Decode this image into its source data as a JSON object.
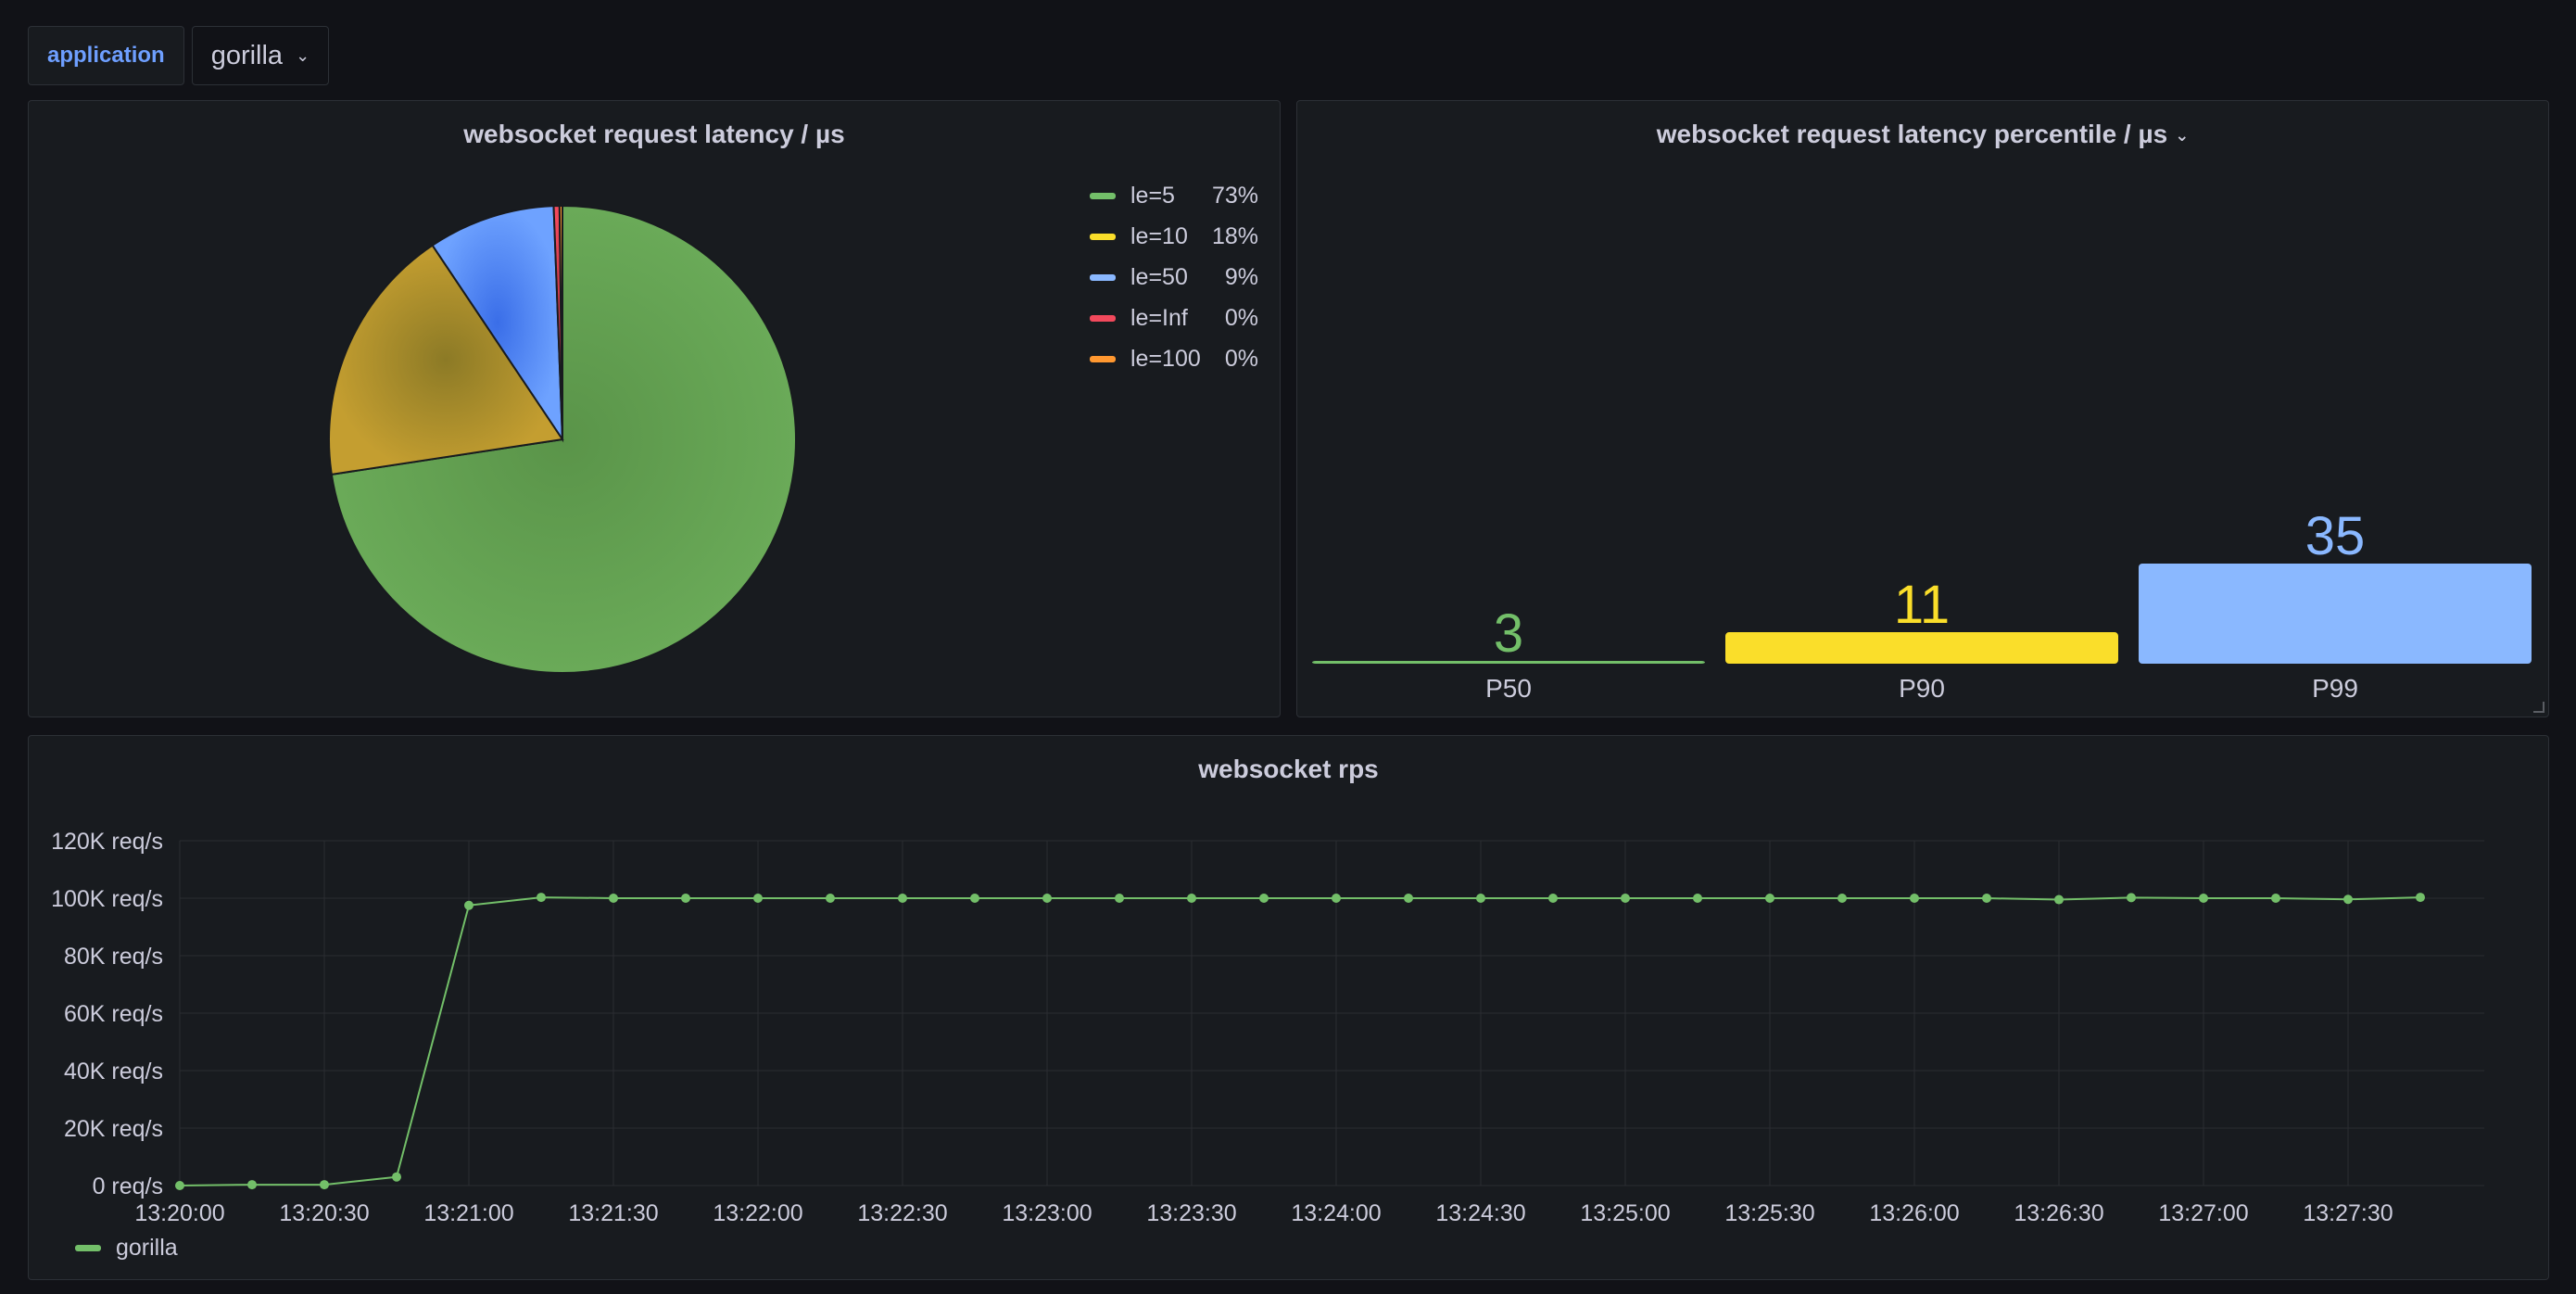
{
  "variables": {
    "label": "application",
    "value": "gorilla"
  },
  "pie_panel": {
    "title": "websocket request latency / µs",
    "legend": [
      {
        "name": "le=5",
        "pct": "73%",
        "color": "#73bf69"
      },
      {
        "name": "le=10",
        "pct": "18%",
        "color": "#fade2a"
      },
      {
        "name": "le=50",
        "pct": "9%",
        "color": "#8ab8ff"
      },
      {
        "name": "le=Inf",
        "pct": "0%",
        "color": "#f2495c"
      },
      {
        "name": "le=100",
        "pct": "0%",
        "color": "#ff9830"
      }
    ]
  },
  "bar_panel": {
    "title": "websocket request latency percentile / µs",
    "bars": [
      {
        "label": "P50",
        "value": "3",
        "color": "#73bf69"
      },
      {
        "label": "P90",
        "value": "11",
        "color": "#fade2a"
      },
      {
        "label": "P99",
        "value": "35",
        "color": "#8ab8ff"
      }
    ]
  },
  "ts_panel": {
    "title": "websocket rps",
    "legend": "gorilla",
    "y_ticks": [
      "0 req/s",
      "20K req/s",
      "40K req/s",
      "60K req/s",
      "80K req/s",
      "100K req/s",
      "120K req/s"
    ],
    "x_ticks": [
      "13:20:00",
      "13:20:30",
      "13:21:00",
      "13:21:30",
      "13:22:00",
      "13:22:30",
      "13:23:00",
      "13:23:30",
      "13:24:00",
      "13:24:30",
      "13:25:00",
      "13:25:30",
      "13:26:00",
      "13:26:30",
      "13:27:00",
      "13:27:30"
    ]
  },
  "chart_data": [
    {
      "type": "pie",
      "title": "websocket request latency / µs",
      "categories": [
        "le=5",
        "le=10",
        "le=50",
        "le=Inf",
        "le=100"
      ],
      "values": [
        72.6,
        18.0,
        8.8,
        0.4,
        0.2
      ],
      "colors": [
        "#73bf69",
        "#fade2a",
        "#8ab8ff",
        "#f2495c",
        "#ff9830"
      ],
      "legend": "right"
    },
    {
      "type": "bar",
      "title": "websocket request latency percentile / µs",
      "categories": [
        "P50",
        "P90",
        "P99"
      ],
      "values": [
        3,
        11,
        35
      ],
      "colors": [
        "#73bf69",
        "#fade2a",
        "#8ab8ff"
      ]
    },
    {
      "type": "line",
      "title": "websocket rps",
      "xlabel": "",
      "ylabel": "",
      "series": [
        {
          "name": "gorilla",
          "color": "#73bf69",
          "x": [
            "13:20:00",
            "13:20:15",
            "13:20:30",
            "13:20:45",
            "13:21:00",
            "13:21:15",
            "13:21:30",
            "13:21:45",
            "13:22:00",
            "13:22:15",
            "13:22:30",
            "13:22:45",
            "13:23:00",
            "13:23:15",
            "13:23:30",
            "13:23:45",
            "13:24:00",
            "13:24:15",
            "13:24:30",
            "13:24:45",
            "13:25:00",
            "13:25:15",
            "13:25:30",
            "13:25:45",
            "13:26:00",
            "13:26:15",
            "13:26:30",
            "13:26:45",
            "13:27:00",
            "13:27:15",
            "13:27:30",
            "13:27:45"
          ],
          "values": [
            0,
            300,
            300,
            3000,
            97500,
            100300,
            100000,
            100000,
            100000,
            100000,
            100000,
            100000,
            100000,
            100000,
            100000,
            100000,
            100000,
            100000,
            100000,
            100000,
            100000,
            100000,
            100000,
            100000,
            100000,
            100000,
            99500,
            100200,
            100000,
            100000,
            99600,
            100300
          ]
        }
      ],
      "ylim": [
        0,
        120000
      ],
      "grid": true,
      "legend": "bottom-left"
    }
  ]
}
